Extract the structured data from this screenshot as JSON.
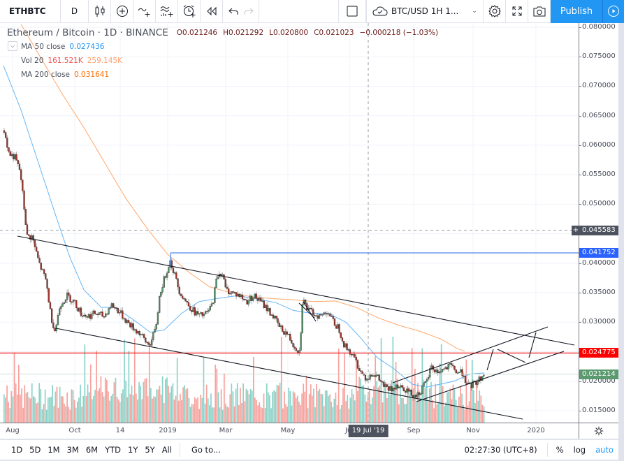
{
  "toolbar": {
    "symbol": "ETHBTC",
    "interval": "D",
    "icons": [
      "candles-icon",
      "add-compare-icon",
      "indicators-icon",
      "financials-icon",
      "alert-icon",
      "replay-icon",
      "undo-icon",
      "redo-icon"
    ],
    "layout_name": "BTC/USD 1H 1...",
    "publish_label": "Publish"
  },
  "legend": {
    "title": "Ethereum / Bitcoin · 1D · BINANCE",
    "open": "O0.021246",
    "high": "H0.021292",
    "low": "L0.020800",
    "close": "C0.021023",
    "change": "−0.000218 (−1.03%)",
    "indicators": [
      {
        "name": "MA 50 close",
        "values": [
          "0.027436"
        ],
        "colors": [
          "#2196f3"
        ]
      },
      {
        "name": "Vol 20",
        "values": [
          "161.521K",
          "259.145K"
        ],
        "colors": [
          "#ef5350",
          "#ff9800"
        ]
      },
      {
        "name": "MA 200 close",
        "values": [
          "0.031641"
        ],
        "colors": [
          "#ff6d00"
        ]
      }
    ]
  },
  "price_axis": {
    "ticks": [
      "0.080000",
      "0.075000",
      "0.070000",
      "0.065000",
      "0.060000",
      "0.055000",
      "0.050000",
      "0.045000",
      "0.040000",
      "0.035000",
      "0.030000",
      "0.025000",
      "0.020000",
      "0.015000"
    ],
    "labels": [
      {
        "value": "0.045583",
        "color": "#4c525e",
        "kind": "crosshair"
      },
      {
        "value": "0.041752",
        "color": "#2962ff",
        "kind": "horizontal-line"
      },
      {
        "value": "0.024775",
        "color": "#ff0000",
        "kind": "horizontal-line"
      },
      {
        "value": "0.021214",
        "color": "#5b9a6e",
        "kind": "last-price"
      }
    ]
  },
  "time_axis": {
    "ticks": [
      "Aug",
      "Oct",
      "14",
      "2019",
      "Mar",
      "May",
      "Jul",
      "Sep",
      "Nov",
      "2020"
    ],
    "crosshair_label": "19 Jul '19"
  },
  "bottom_bar": {
    "ranges": [
      "1D",
      "5D",
      "1M",
      "3M",
      "6M",
      "YTD",
      "1Y",
      "5Y",
      "All"
    ],
    "goto_label": "Go to...",
    "clock": "02:27:30 (UTC+8)",
    "options": [
      "%",
      "log",
      "auto"
    ]
  },
  "colors": {
    "up": "#53956d",
    "down": "#a0362b",
    "vol_up": "#8ad3c8",
    "vol_down": "#f7a19c",
    "ma50": "#64b5f6",
    "ma200": "#ffa76b",
    "accent": "#2196f3"
  }
}
